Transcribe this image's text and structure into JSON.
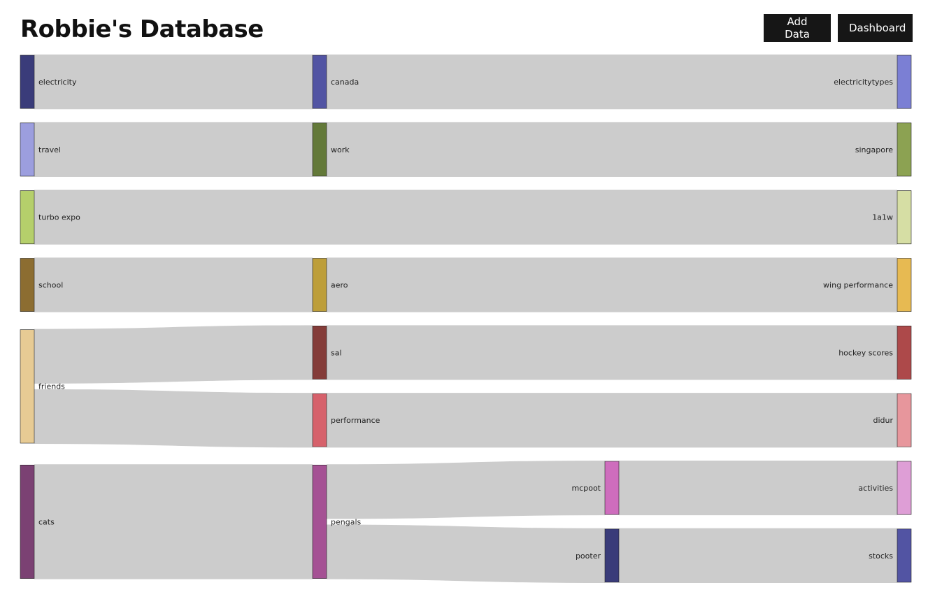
{
  "header": {
    "title": "Robbie's Database",
    "add_data_label": "Add Data",
    "dashboard_label": "Dashboard"
  },
  "chart_data": {
    "type": "sankey",
    "link_color": "#cccccc",
    "nodes": [
      {
        "id": "electricity",
        "label": "electricity",
        "column": 0,
        "color": "#3a3c7a"
      },
      {
        "id": "travel",
        "label": "travel",
        "column": 0,
        "color": "#9c9ede"
      },
      {
        "id": "turbo_expo",
        "label": "turbo expo",
        "column": 0,
        "color": "#b5cf6b"
      },
      {
        "id": "school",
        "label": "school",
        "column": 0,
        "color": "#8c6d31"
      },
      {
        "id": "friends",
        "label": "friends",
        "column": 0,
        "color": "#e7cb94"
      },
      {
        "id": "cats",
        "label": "cats",
        "column": 0,
        "color": "#7b4173"
      },
      {
        "id": "canada",
        "label": "canada",
        "column": 1,
        "color": "#5254a3"
      },
      {
        "id": "work",
        "label": "work",
        "column": 1,
        "color": "#637939"
      },
      {
        "id": "aero",
        "label": "aero",
        "column": 1,
        "color": "#bd9e39"
      },
      {
        "id": "sal",
        "label": "sal",
        "column": 1,
        "color": "#843c39"
      },
      {
        "id": "performance",
        "label": "performance",
        "column": 1,
        "color": "#d6616b"
      },
      {
        "id": "pengals",
        "label": "pengals",
        "column": 1,
        "color": "#a55194"
      },
      {
        "id": "mcpoot",
        "label": "mcpoot",
        "column": 2,
        "color": "#ce6dbd"
      },
      {
        "id": "pooter",
        "label": "pooter",
        "column": 2,
        "color": "#393b79"
      },
      {
        "id": "electricitytypes",
        "label": "electricitytypes",
        "column": 3,
        "color": "#7b7fd4"
      },
      {
        "id": "singapore",
        "label": "singapore",
        "column": 3,
        "color": "#8ca252"
      },
      {
        "id": "1a1w",
        "label": "1a1w",
        "column": 3,
        "color": "#d6dea4"
      },
      {
        "id": "wing_performance",
        "label": "wing performance",
        "column": 3,
        "color": "#e7ba52"
      },
      {
        "id": "hockey_scores",
        "label": "hockey scores",
        "column": 3,
        "color": "#ad494a"
      },
      {
        "id": "didur",
        "label": "didur",
        "column": 3,
        "color": "#e7969c"
      },
      {
        "id": "activities",
        "label": "activities",
        "column": 3,
        "color": "#de9ed6"
      },
      {
        "id": "stocks",
        "label": "stocks",
        "column": 3,
        "color": "#5254a3"
      }
    ],
    "links": [
      {
        "source": "electricity",
        "target": "canada",
        "value": 1
      },
      {
        "source": "canada",
        "target": "electricitytypes",
        "value": 1
      },
      {
        "source": "travel",
        "target": "work",
        "value": 1
      },
      {
        "source": "work",
        "target": "singapore",
        "value": 1
      },
      {
        "source": "turbo_expo",
        "target": "1a1w",
        "value": 1
      },
      {
        "source": "school",
        "target": "aero",
        "value": 1
      },
      {
        "source": "aero",
        "target": "wing_performance",
        "value": 1
      },
      {
        "source": "friends",
        "target": "sal",
        "value": 1
      },
      {
        "source": "friends",
        "target": "performance",
        "value": 1
      },
      {
        "source": "sal",
        "target": "hockey_scores",
        "value": 1
      },
      {
        "source": "performance",
        "target": "didur",
        "value": 1
      },
      {
        "source": "cats",
        "target": "pengals",
        "value": 2
      },
      {
        "source": "pengals",
        "target": "mcpoot",
        "value": 1
      },
      {
        "source": "pengals",
        "target": "pooter",
        "value": 1
      },
      {
        "source": "mcpoot",
        "target": "activities",
        "value": 1
      },
      {
        "source": "pooter",
        "target": "stocks",
        "value": 1
      }
    ]
  }
}
